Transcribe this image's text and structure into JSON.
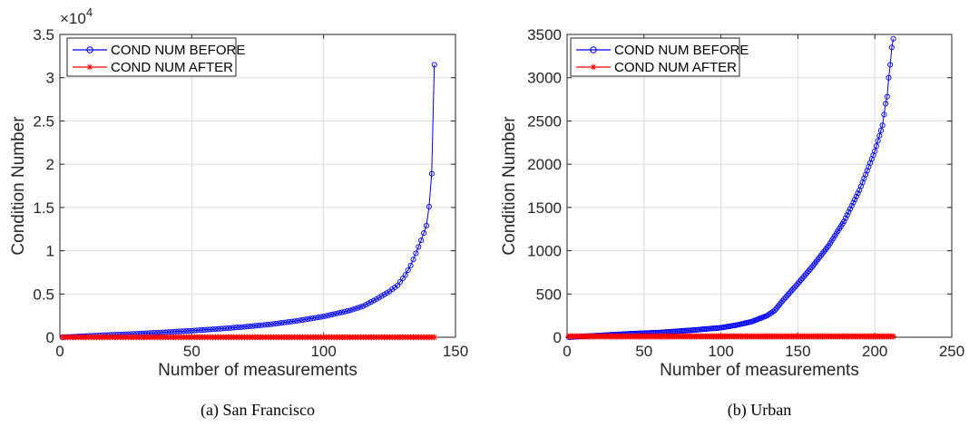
{
  "chart_data": [
    {
      "type": "line",
      "caption": "(a) San Francisco",
      "xlabel": "Number of measurements",
      "ylabel": "Condition Number",
      "exponent_label": "×10",
      "exponent_power": "4",
      "xlim": [
        0,
        150
      ],
      "ylim": [
        0,
        35000
      ],
      "xticks": [
        0,
        50,
        100,
        150
      ],
      "yticks": [
        0,
        5000,
        10000,
        15000,
        20000,
        25000,
        30000,
        35000
      ],
      "ytick_labels": [
        "0",
        "0.5",
        "1",
        "1.5",
        "2",
        "2.5",
        "3",
        "3.5"
      ],
      "grid": true,
      "legend_position": "top-left",
      "series": [
        {
          "name": "COND NUM BEFORE",
          "color": "#0000ff",
          "marker": "circle",
          "curve_anchors": [
            [
              1,
              0
            ],
            [
              10,
              140
            ],
            [
              20,
              280
            ],
            [
              30,
              420
            ],
            [
              40,
              580
            ],
            [
              50,
              760
            ],
            [
              60,
              960
            ],
            [
              70,
              1200
            ],
            [
              80,
              1500
            ],
            [
              90,
              1900
            ],
            [
              100,
              2400
            ],
            [
              110,
              3100
            ],
            [
              115,
              3600
            ],
            [
              120,
              4400
            ],
            [
              125,
              5300
            ],
            [
              128,
              6000
            ],
            [
              131,
              7200
            ],
            [
              133,
              8300
            ],
            [
              135,
              9700
            ],
            [
              137,
              11200
            ],
            [
              139,
              12900
            ],
            [
              140,
              15100
            ],
            [
              141,
              18900
            ],
            [
              142,
              31500
            ]
          ],
          "n_points": 142
        },
        {
          "name": "COND NUM AFTER",
          "color": "#ff0000",
          "marker": "asterisk",
          "constant": 10,
          "n_points": 142
        }
      ]
    },
    {
      "type": "line",
      "caption": "(b) Urban",
      "xlabel": "Number of measurements",
      "ylabel": "Condition Number",
      "xlim": [
        0,
        250
      ],
      "ylim": [
        0,
        3500
      ],
      "xticks": [
        0,
        50,
        100,
        150,
        200,
        250
      ],
      "yticks": [
        0,
        500,
        1000,
        1500,
        2000,
        2500,
        3000,
        3500
      ],
      "ytick_labels": [
        "0",
        "500",
        "1000",
        "1500",
        "2000",
        "2500",
        "3000",
        "3500"
      ],
      "grid": true,
      "legend_position": "top-left",
      "series": [
        {
          "name": "COND NUM BEFORE",
          "color": "#0000ff",
          "marker": "circle",
          "curve_anchors": [
            [
              1,
              0
            ],
            [
              20,
              20
            ],
            [
              40,
              40
            ],
            [
              60,
              55
            ],
            [
              80,
              80
            ],
            [
              100,
              110
            ],
            [
              110,
              140
            ],
            [
              120,
              180
            ],
            [
              130,
              250
            ],
            [
              135,
              310
            ],
            [
              140,
              420
            ],
            [
              145,
              520
            ],
            [
              150,
              620
            ],
            [
              160,
              830
            ],
            [
              170,
              1060
            ],
            [
              180,
              1340
            ],
            [
              190,
              1700
            ],
            [
              200,
              2150
            ],
            [
              205,
              2450
            ],
            [
              207,
              2700
            ],
            [
              208,
              2780
            ],
            [
              209,
              3000
            ],
            [
              210,
              3150
            ],
            [
              211,
              3350
            ],
            [
              212,
              3450
            ]
          ],
          "n_points": 212
        },
        {
          "name": "COND NUM AFTER",
          "color": "#ff0000",
          "marker": "asterisk",
          "constant": 10,
          "n_points": 212
        }
      ]
    }
  ]
}
